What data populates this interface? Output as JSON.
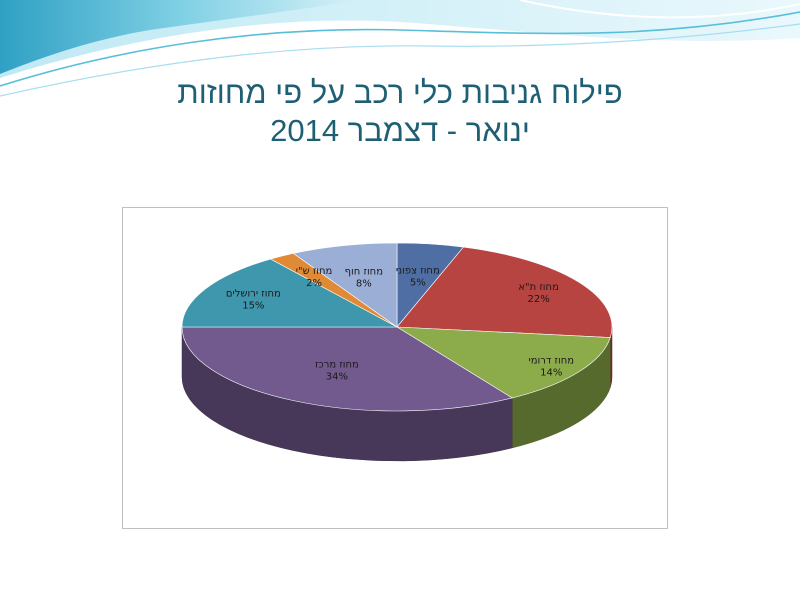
{
  "slide": {
    "title_line1": "פילוח גניבות כלי רכב על פי מחוזות",
    "title_line2": "ינואר - דצמבר 2014"
  },
  "colors": {
    "title": "#1f5f74",
    "wave_light": "#c9ecf5",
    "wave_mid": "#8fd3e6",
    "wave_dark": "#3aa6c9"
  },
  "chart_data": {
    "type": "pie",
    "style": "3d",
    "slices": [
      {
        "name": "מחוז צפוני",
        "value": 5,
        "label": "5%",
        "color": "#4f6fa4"
      },
      {
        "name": "מחוז ת\"א",
        "value": 22,
        "label": "22%",
        "color": "#b84441"
      },
      {
        "name": "מחוז דרומי",
        "value": 14,
        "label": "14%",
        "color": "#8cab4a"
      },
      {
        "name": "מחוז מרכז",
        "value": 34,
        "label": "34%",
        "color": "#725a8f"
      },
      {
        "name": "מחוז ירושלים",
        "value": 15,
        "label": "15%",
        "color": "#3f97ad"
      },
      {
        "name": "מחוז ש\"י",
        "value": 2,
        "label": "2%",
        "color": "#e08a35"
      },
      {
        "name": "מחוז חוף",
        "value": 8,
        "label": "8%",
        "color": "#9aaed6"
      }
    ]
  }
}
